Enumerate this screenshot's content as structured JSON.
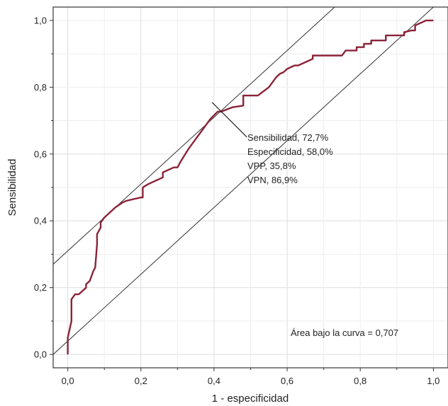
{
  "chart_data": {
    "type": "line",
    "xlabel": "1 - especificidad",
    "ylabel": "Sensibilidad",
    "xlim": [
      -0.04,
      1.04
    ],
    "ylim": [
      -0.04,
      1.04
    ],
    "x_ticks": [
      "0,0",
      "0,2",
      "0,4",
      "0,6",
      "0,8",
      "1,0"
    ],
    "y_ticks": [
      "0,0",
      "0,2",
      "0,4",
      "0,6",
      "0,8",
      "1,0"
    ],
    "grid": true,
    "series": [
      {
        "color": "#8b2338",
        "x": [
          0.0,
          0.0,
          0.01,
          0.01,
          0.02,
          0.03,
          0.04,
          0.05,
          0.05,
          0.06,
          0.07,
          0.075,
          0.08,
          0.08,
          0.09,
          0.09,
          0.1,
          0.12,
          0.13,
          0.15,
          0.16,
          0.18,
          0.2,
          0.205,
          0.205,
          0.22,
          0.26,
          0.26,
          0.27,
          0.29,
          0.3,
          0.31,
          0.33,
          0.34,
          0.36,
          0.39,
          0.41,
          0.42,
          0.45,
          0.48,
          0.48,
          0.49,
          0.52,
          0.55,
          0.57,
          0.58,
          0.59,
          0.6,
          0.62,
          0.63,
          0.65,
          0.66,
          0.67,
          0.67,
          0.75,
          0.76,
          0.77,
          0.79,
          0.79,
          0.81,
          0.81,
          0.83,
          0.83,
          0.87,
          0.87,
          0.92,
          0.92,
          0.94,
          0.95,
          0.95,
          0.96,
          0.97,
          0.98,
          1.0
        ],
        "y": [
          0.0,
          0.05,
          0.1,
          0.165,
          0.18,
          0.18,
          0.19,
          0.2,
          0.21,
          0.22,
          0.25,
          0.26,
          0.33,
          0.36,
          0.38,
          0.395,
          0.41,
          0.43,
          0.44,
          0.455,
          0.46,
          0.465,
          0.47,
          0.47,
          0.5,
          0.51,
          0.53,
          0.545,
          0.55,
          0.56,
          0.56,
          0.58,
          0.615,
          0.63,
          0.66,
          0.705,
          0.727,
          0.727,
          0.74,
          0.745,
          0.775,
          0.775,
          0.775,
          0.8,
          0.83,
          0.84,
          0.845,
          0.855,
          0.865,
          0.865,
          0.875,
          0.88,
          0.885,
          0.895,
          0.895,
          0.91,
          0.91,
          0.91,
          0.92,
          0.92,
          0.93,
          0.93,
          0.94,
          0.94,
          0.955,
          0.955,
          0.965,
          0.97,
          0.97,
          0.985,
          0.99,
          0.995,
          1.0,
          1.0
        ]
      }
    ],
    "reference_lines": [
      {
        "from": [
          -0.04,
          0.0
        ],
        "to": [
          1.04,
          1.08
        ],
        "color": "#333333"
      },
      {
        "from": [
          -0.04,
          0.27
        ],
        "to": [
          0.73,
          1.04
        ],
        "color": "#333333"
      }
    ],
    "cutoff_point": {
      "x": 0.42,
      "y": 0.727
    },
    "annotations": {
      "cutoff_lines": [
        "Sensibilidad, 72,7%",
        "Especificidad, 58,0%",
        "VPP, 35,8%",
        "VPN, 86,9%"
      ],
      "auc": "Área bajo la curva = 0,707"
    }
  }
}
